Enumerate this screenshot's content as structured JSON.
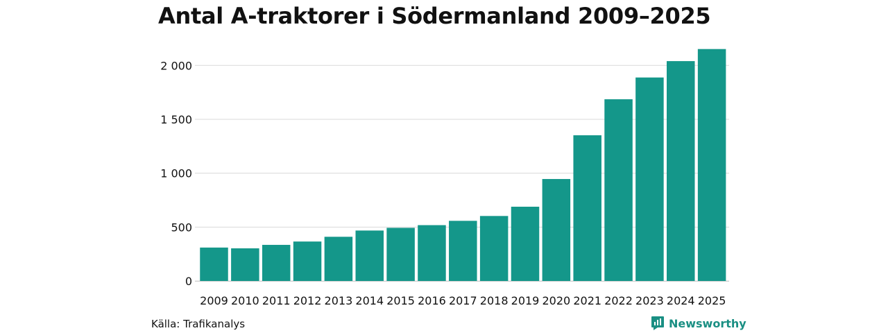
{
  "chart_data": {
    "type": "bar",
    "title": "Antal A-traktorer i Södermanland 2009–2025",
    "categories": [
      "2009",
      "2010",
      "2011",
      "2012",
      "2013",
      "2014",
      "2015",
      "2016",
      "2017",
      "2018",
      "2019",
      "2020",
      "2021",
      "2022",
      "2023",
      "2024",
      "2025"
    ],
    "values": [
      310,
      303,
      335,
      366,
      410,
      468,
      493,
      518,
      558,
      603,
      689,
      946,
      1352,
      1686,
      1888,
      2040,
      2152
    ],
    "ylim": [
      0,
      2150
    ],
    "yticks": [
      0,
      500,
      1000,
      1500,
      2000
    ],
    "ytick_labels": [
      "0",
      "500",
      "1 000",
      "1 500",
      "2 000"
    ],
    "xlabel": "",
    "ylabel": "",
    "grid": true,
    "bar_color": "#14978a"
  },
  "footer": {
    "source": "Källa: Trafikanalys",
    "brand": "Newsworthy",
    "brand_color": "#1a8f83"
  }
}
